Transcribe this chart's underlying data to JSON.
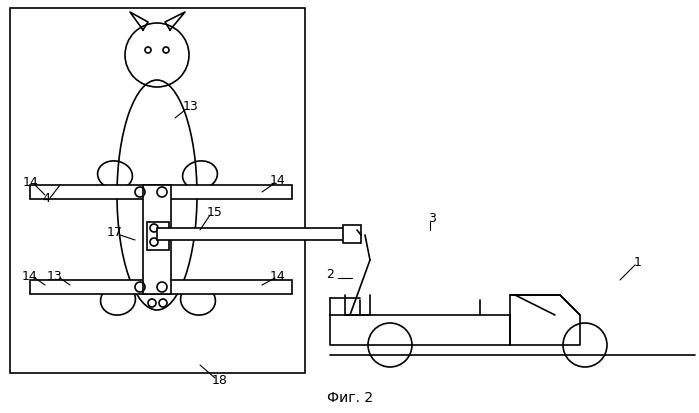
{
  "title": "Фиг. 2",
  "background_color": "#ffffff",
  "line_color": "#000000",
  "line_width": 1.2,
  "fig_width": 6.99,
  "fig_height": 4.13,
  "dpi": 100
}
